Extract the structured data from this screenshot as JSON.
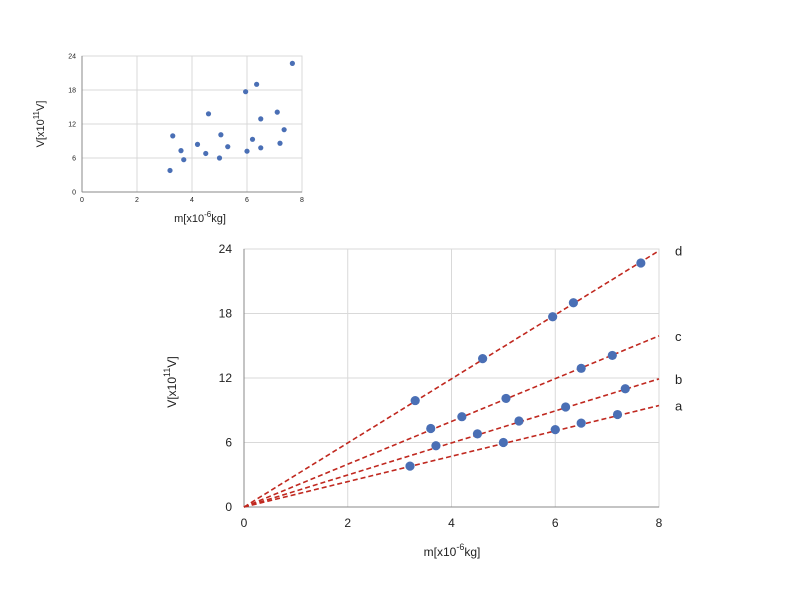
{
  "colors": {
    "point": "#4a6fb5",
    "point_stroke": "#4a6fb5",
    "line": "#c0281f",
    "grid": "#d9d9d9",
    "axis": "#888888",
    "text": "#222222"
  },
  "chart_data": [
    {
      "type": "scatter",
      "title": "",
      "xlim": [
        0,
        8
      ],
      "ylim": [
        0,
        24
      ],
      "x_ticks": [
        "0",
        "2",
        "4",
        "6",
        "8"
      ],
      "y_ticks": [
        "0",
        "6",
        "12",
        "18",
        "24"
      ],
      "grid": true,
      "xlabel": {
        "pre": "m[x10",
        "sup": "-6",
        "post": "kg]"
      },
      "ylabel": {
        "pre": "V[x10",
        "sup": "11",
        "post": "V]"
      },
      "series": [
        {
          "points": [
            {
              "x": 3.2,
              "y": 3.8
            },
            {
              "x": 3.3,
              "y": 9.9
            },
            {
              "x": 3.6,
              "y": 7.3
            },
            {
              "x": 3.7,
              "y": 5.7
            },
            {
              "x": 4.2,
              "y": 8.4
            },
            {
              "x": 4.5,
              "y": 6.8
            },
            {
              "x": 4.6,
              "y": 13.8
            },
            {
              "x": 5.0,
              "y": 6.0
            },
            {
              "x": 5.05,
              "y": 10.1
            },
            {
              "x": 5.3,
              "y": 8.0
            },
            {
              "x": 6.0,
              "y": 7.2
            },
            {
              "x": 5.95,
              "y": 17.7
            },
            {
              "x": 6.2,
              "y": 9.3
            },
            {
              "x": 6.35,
              "y": 19.0
            },
            {
              "x": 6.5,
              "y": 7.8
            },
            {
              "x": 6.5,
              "y": 12.9
            },
            {
              "x": 7.1,
              "y": 14.1
            },
            {
              "x": 7.2,
              "y": 8.6
            },
            {
              "x": 7.35,
              "y": 11.0
            },
            {
              "x": 7.65,
              "y": 22.7
            }
          ]
        }
      ]
    },
    {
      "type": "scatter",
      "title": "",
      "xlim": [
        0,
        8
      ],
      "ylim": [
        0,
        24
      ],
      "x_ticks": [
        "0",
        "2",
        "4",
        "6",
        "8"
      ],
      "y_ticks": [
        "0",
        "6",
        "12",
        "18",
        "24"
      ],
      "grid": true,
      "xlabel": {
        "pre": "m[x10",
        "sup": "-6",
        "post": "kg]"
      },
      "ylabel": {
        "pre": "V[x10",
        "sup": "11",
        "post": "V]"
      },
      "series": [
        {
          "points": [
            {
              "x": 3.2,
              "y": 3.8
            },
            {
              "x": 3.3,
              "y": 9.9
            },
            {
              "x": 3.6,
              "y": 7.3
            },
            {
              "x": 3.7,
              "y": 5.7
            },
            {
              "x": 4.2,
              "y": 8.4
            },
            {
              "x": 4.5,
              "y": 6.8
            },
            {
              "x": 4.6,
              "y": 13.8
            },
            {
              "x": 5.0,
              "y": 6.0
            },
            {
              "x": 5.05,
              "y": 10.1
            },
            {
              "x": 5.3,
              "y": 8.0
            },
            {
              "x": 6.0,
              "y": 7.2
            },
            {
              "x": 5.95,
              "y": 17.7
            },
            {
              "x": 6.2,
              "y": 9.3
            },
            {
              "x": 6.35,
              "y": 19.0
            },
            {
              "x": 6.5,
              "y": 7.8
            },
            {
              "x": 6.5,
              "y": 12.9
            },
            {
              "x": 7.1,
              "y": 14.1
            },
            {
              "x": 7.2,
              "y": 8.6
            },
            {
              "x": 7.35,
              "y": 11.0
            },
            {
              "x": 7.65,
              "y": 22.7
            }
          ]
        }
      ],
      "lines": [
        {
          "label": "a",
          "slope": 1.18
        },
        {
          "label": "b",
          "slope": 1.49
        },
        {
          "label": "c",
          "slope": 1.99
        },
        {
          "label": "d",
          "slope": 2.98
        }
      ]
    }
  ]
}
